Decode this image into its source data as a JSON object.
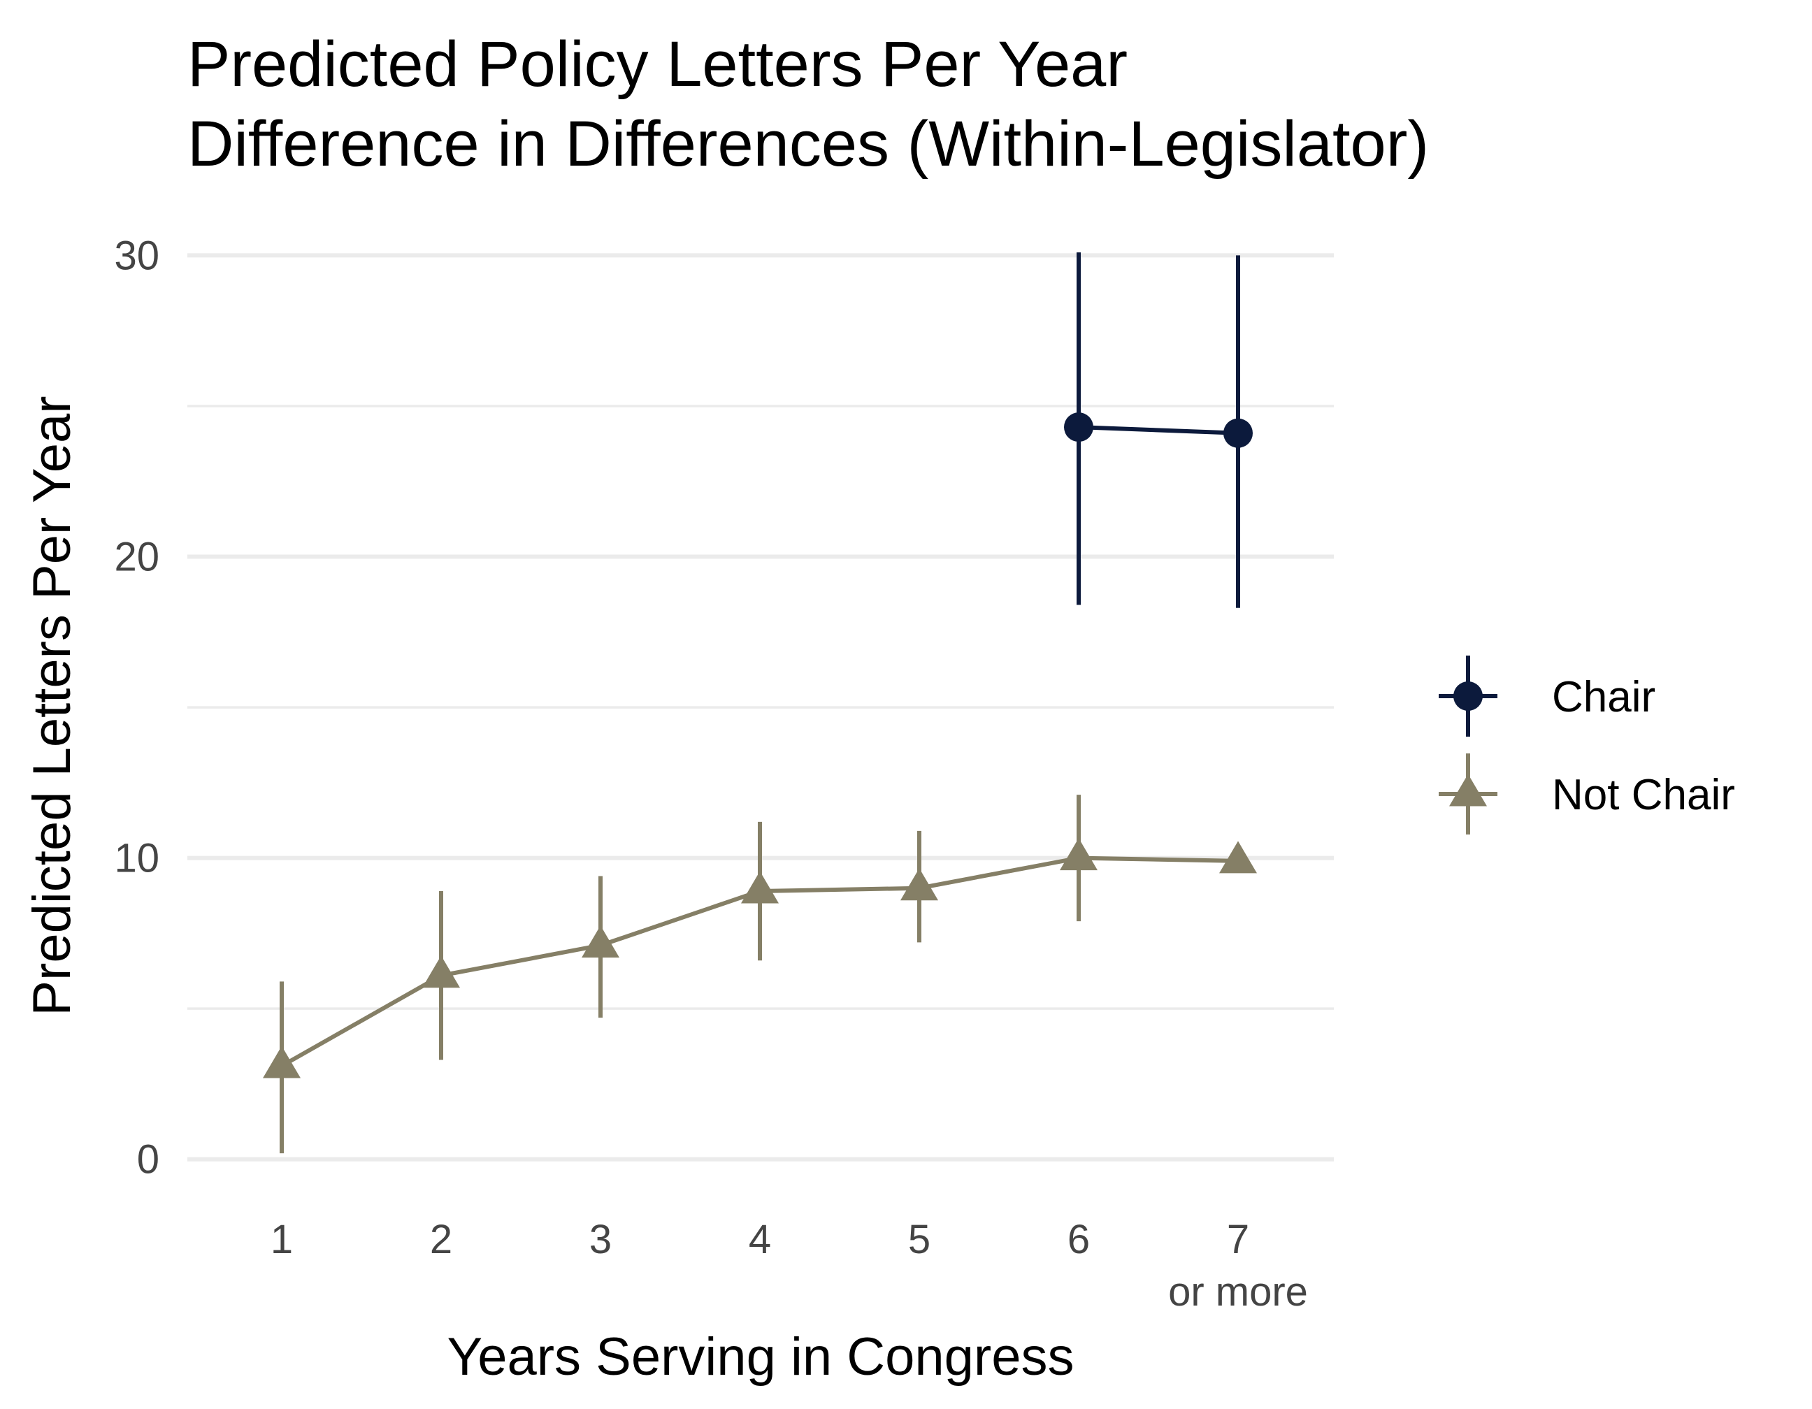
{
  "chart_data": {
    "type": "line",
    "title": "Predicted Policy Letters Per Year",
    "subtitle": "Difference in Differences (Within-Legislator)",
    "xlabel": "Years Serving in Congress",
    "ylabel": "Predicted Letters Per Year",
    "x_categories": [
      {
        "main": "1",
        "sub": ""
      },
      {
        "main": "2",
        "sub": ""
      },
      {
        "main": "3",
        "sub": ""
      },
      {
        "main": "4",
        "sub": ""
      },
      {
        "main": "5",
        "sub": ""
      },
      {
        "main": "6",
        "sub": ""
      },
      {
        "main": "7",
        "sub": "or more"
      }
    ],
    "yticks": [
      0,
      10,
      20,
      30
    ],
    "ylim": [
      -1.7,
      31.1
    ],
    "grid": true,
    "legend_position": "right",
    "series": [
      {
        "name": "Chair",
        "color": "#0c1a3c",
        "marker": "circle",
        "points": [
          {
            "x": "6",
            "y": 24.3,
            "lo": 18.4,
            "hi": 30.1
          },
          {
            "x": "7",
            "y": 24.1,
            "lo": 18.3,
            "hi": 30.0
          }
        ]
      },
      {
        "name": "Not Chair",
        "color": "#857f66",
        "marker": "triangle",
        "points": [
          {
            "x": "1",
            "y": 3.1,
            "lo": 0.2,
            "hi": 5.9
          },
          {
            "x": "2",
            "y": 6.1,
            "lo": 3.3,
            "hi": 8.9
          },
          {
            "x": "3",
            "y": 7.1,
            "lo": 4.7,
            "hi": 9.4
          },
          {
            "x": "4",
            "y": 8.9,
            "lo": 6.6,
            "hi": 11.2
          },
          {
            "x": "5",
            "y": 9.0,
            "lo": 7.2,
            "hi": 10.9
          },
          {
            "x": "6",
            "y": 10.0,
            "lo": 7.9,
            "hi": 12.1
          },
          {
            "x": "7",
            "y": 9.9,
            "lo": null,
            "hi": null
          }
        ]
      }
    ]
  }
}
